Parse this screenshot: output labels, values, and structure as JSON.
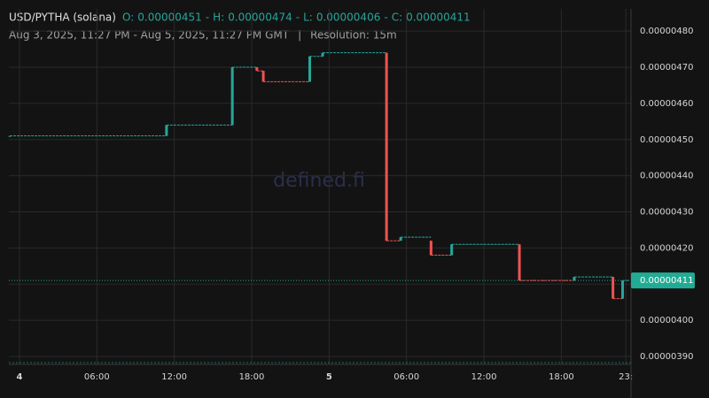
{
  "chart_data": {
    "type": "candlestick",
    "header": {
      "symbol": "USD/PYTHA (solana)",
      "ohlc": [
        {
          "label": "O:",
          "value": "0.00000451"
        },
        {
          "label": "H:",
          "value": "0.00000474"
        },
        {
          "label": "L:",
          "value": "0.00000406"
        },
        {
          "label": "C:",
          "value": "0.00000411"
        }
      ],
      "separator": "-",
      "range": "Aug 3, 2025, 11:27 PM - Aug 5, 2025, 11:27 PM GMT",
      "divider": "|",
      "resolution": "Resolution: 15m"
    },
    "watermark": "defined.fi",
    "up_color": "#26a69a",
    "down_color": "#ef5350",
    "candles": [
      {
        "x": -0.75,
        "open": 4.51e-06,
        "high": 4.51e-06,
        "low": 4.51e-06,
        "close": 4.51e-06
      },
      {
        "x": 11.4,
        "open": 4.51e-06,
        "high": 4.54e-06,
        "low": 4.51e-06,
        "close": 4.54e-06
      },
      {
        "x": 16.5,
        "open": 4.54e-06,
        "high": 4.7e-06,
        "low": 4.54e-06,
        "close": 4.7e-06
      },
      {
        "x": 18.4,
        "open": 4.7e-06,
        "high": 4.7e-06,
        "low": 4.69e-06,
        "close": 4.69e-06
      },
      {
        "x": 18.9,
        "open": 4.69e-06,
        "high": 4.69e-06,
        "low": 4.66e-06,
        "close": 4.66e-06
      },
      {
        "x": 22.5,
        "open": 4.66e-06,
        "high": 4.73e-06,
        "low": 4.66e-06,
        "close": 4.73e-06
      },
      {
        "x": 23.5,
        "open": 4.73e-06,
        "high": 4.74e-06,
        "low": 4.73e-06,
        "close": 4.74e-06
      },
      {
        "x": 28.45,
        "open": 4.74e-06,
        "high": 4.74e-06,
        "low": 4.22e-06,
        "close": 4.22e-06
      },
      {
        "x": 29.55,
        "open": 4.22e-06,
        "high": 4.23e-06,
        "low": 4.22e-06,
        "close": 4.23e-06
      },
      {
        "x": 31.9,
        "open": 4.22e-06,
        "high": 4.22e-06,
        "low": 4.18e-06,
        "close": 4.18e-06
      },
      {
        "x": 33.5,
        "open": 4.18e-06,
        "high": 4.21e-06,
        "low": 4.18e-06,
        "close": 4.21e-06
      },
      {
        "x": 38.75,
        "open": 4.21e-06,
        "high": 4.21e-06,
        "low": 4.11e-06,
        "close": 4.11e-06
      },
      {
        "x": 43.0,
        "open": 4.11e-06,
        "high": 4.12e-06,
        "low": 4.11e-06,
        "close": 4.12e-06
      },
      {
        "x": 46.0,
        "open": 4.12e-06,
        "high": 4.12e-06,
        "low": 4.06e-06,
        "close": 4.06e-06
      },
      {
        "x": 46.75,
        "open": 4.06e-06,
        "high": 4.11e-06,
        "low": 4.06e-06,
        "close": 4.11e-06
      }
    ],
    "last_price": {
      "value": 4.11e-06,
      "label": "0.00000411"
    },
    "xlim": [
      -0.82,
      47.4
    ],
    "xticks": [
      {
        "value": 0,
        "label": "4"
      },
      {
        "value": 6,
        "label": "06:00"
      },
      {
        "value": 12,
        "label": "12:00"
      },
      {
        "value": 18,
        "label": "18:00"
      },
      {
        "value": 24,
        "label": "5"
      },
      {
        "value": 30,
        "label": "06:00"
      },
      {
        "value": 36,
        "label": "12:00"
      },
      {
        "value": 42,
        "label": "18:00"
      },
      {
        "value": 47,
        "label": "23:"
      }
    ],
    "ylim": [
      3.878e-06,
      4.837e-06
    ],
    "yticks": [
      {
        "value": 3.9e-06,
        "label": "0.00000390"
      },
      {
        "value": 4e-06,
        "label": "0.00000400"
      },
      {
        "value": 4.1e-06,
        "label": "0.00000410"
      },
      {
        "value": 4.2e-06,
        "label": "0.00000420"
      },
      {
        "value": 4.3e-06,
        "label": "0.00000430"
      },
      {
        "value": 4.4e-06,
        "label": "0.00000440"
      },
      {
        "value": 4.5e-06,
        "label": "0.00000450"
      },
      {
        "value": 4.6e-06,
        "label": "0.00000460"
      },
      {
        "value": 4.7e-06,
        "label": "0.00000470"
      },
      {
        "value": 4.8e-06,
        "label": "0.00000480"
      }
    ],
    "grid": true
  }
}
